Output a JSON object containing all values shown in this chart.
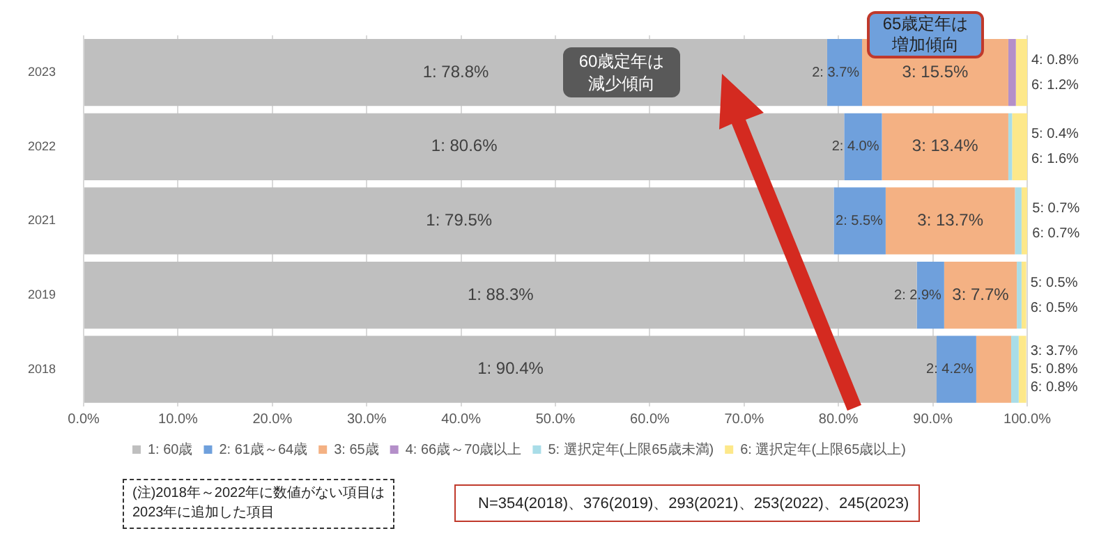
{
  "chart_data": {
    "type": "bar",
    "orientation": "horizontal",
    "stacked": true,
    "categories": [
      "2023",
      "2022",
      "2021",
      "2019",
      "2018"
    ],
    "series": [
      {
        "name": "1: 60歳",
        "color": "#bfbfbf",
        "values": [
          78.8,
          80.6,
          79.5,
          88.3,
          90.4
        ],
        "value_labels": [
          "1: 78.8%",
          "1: 80.6%",
          "1: 79.5%",
          "1: 88.3%",
          "1: 90.4%"
        ]
      },
      {
        "name": "2: 61歳～64歳",
        "color": "#6fa0dc",
        "values": [
          3.7,
          4.0,
          5.5,
          2.9,
          4.2
        ],
        "value_labels": [
          "2: 3.7%",
          "2: 4.0%",
          "2: 5.5%",
          "2: 2.9%",
          "2: 4.2%"
        ]
      },
      {
        "name": "3: 65歳",
        "color": "#f4b183",
        "values": [
          15.5,
          13.4,
          13.7,
          7.7,
          3.7
        ],
        "value_labels": [
          "3: 15.5%",
          "3: 13.4%",
          "3: 13.7%",
          "3: 7.7%",
          "3: 3.7%"
        ]
      },
      {
        "name": "4: 66歳～70歳以上",
        "color": "#b48fc9",
        "values": [
          0.8,
          null,
          null,
          null,
          null
        ],
        "value_labels": [
          "4: 0.8%",
          null,
          null,
          null,
          null
        ]
      },
      {
        "name": "5: 選択定年(上限65歳未満)",
        "color": "#a9dde8",
        "values": [
          null,
          0.4,
          0.7,
          0.5,
          0.8
        ],
        "value_labels": [
          null,
          "5: 0.4%",
          "5: 0.7%",
          "5: 0.5%",
          "5: 0.8%"
        ]
      },
      {
        "name": "6: 選択定年(上限65歳以上)",
        "color": "#fde88a",
        "values": [
          1.2,
          1.6,
          0.7,
          0.5,
          0.8
        ],
        "value_labels": [
          "6: 1.2%",
          "6: 1.6%",
          "6: 0.7%",
          "6: 0.5%",
          "6: 0.8%"
        ]
      }
    ],
    "xlim": [
      0,
      100
    ],
    "xticks": [
      {
        "value": 0,
        "label": "0.0%"
      },
      {
        "value": 10,
        "label": "10.0%"
      },
      {
        "value": 20,
        "label": "20.0%"
      },
      {
        "value": 30,
        "label": "30.0%"
      },
      {
        "value": 40,
        "label": "40.0%"
      },
      {
        "value": 50,
        "label": "50.0%"
      },
      {
        "value": 60,
        "label": "60.0%"
      },
      {
        "value": 70,
        "label": "70.0%"
      },
      {
        "value": 80,
        "label": "80.0%"
      },
      {
        "value": 90,
        "label": "90.0%"
      },
      {
        "value": 100,
        "label": "100.0%"
      }
    ],
    "grid": "x",
    "legend": "bottom",
    "annotations": [
      "60歳定年は減少傾向",
      "65歳定年は増加傾向",
      "(注)2018年～2022年に数値がない項目は\n2023年に追加した項目",
      "N=354(2018)、376(2019)、293(2021)、253(2022)、245(2023)"
    ]
  }
}
